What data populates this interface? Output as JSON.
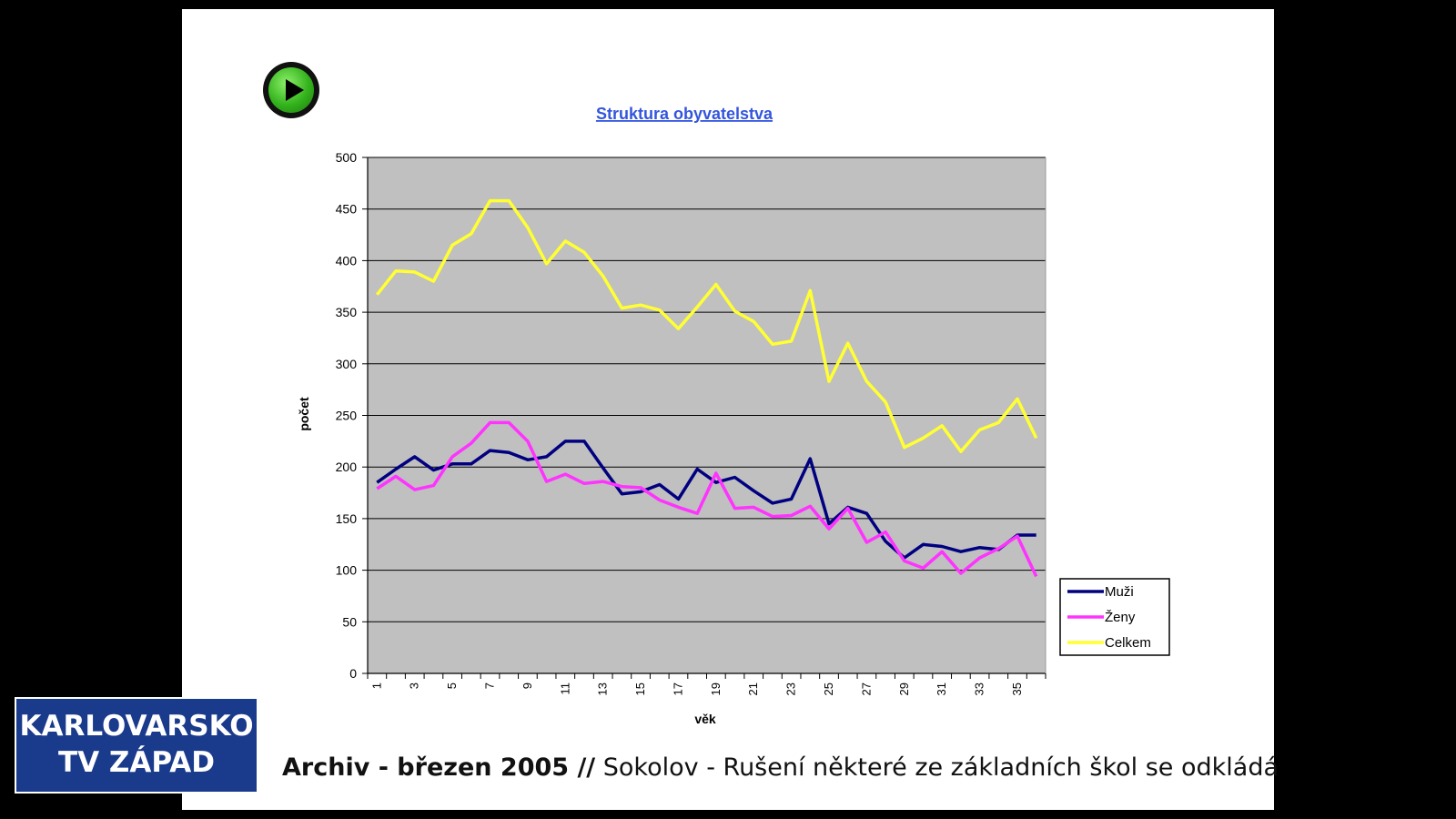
{
  "overlay": {
    "channel_line1": "KARLOVARSKO",
    "channel_line2": "TV ZÁPAD",
    "ticker_bold": "Archiv - březen 2005 //",
    "ticker_text": "Sokolov - Rušení některé ze základních škol se odkládá"
  },
  "controls": {
    "play_icon": "play-icon"
  },
  "colors": {
    "plot_bg": "#c0c0c0",
    "muzi": "#000080",
    "zeny": "#ff33ff",
    "celkem": "#ffff33",
    "title": "#3355dd"
  },
  "chart_data": {
    "type": "line",
    "title": "Struktura obyvatelstva",
    "xlabel": "věk",
    "ylabel": "počet",
    "ylim": [
      0,
      500
    ],
    "yticks": [
      0,
      50,
      100,
      150,
      200,
      250,
      300,
      350,
      400,
      450,
      500
    ],
    "x": [
      1,
      2,
      3,
      4,
      5,
      6,
      7,
      8,
      9,
      10,
      11,
      12,
      13,
      14,
      15,
      16,
      17,
      18,
      19,
      20,
      21,
      22,
      23,
      24,
      25,
      26,
      27,
      28,
      29,
      30,
      31,
      32,
      33,
      34,
      35,
      36
    ],
    "xtick_labels": [
      "1",
      "3",
      "5",
      "7",
      "9",
      "11",
      "13",
      "15",
      "17",
      "19",
      "21",
      "23",
      "25",
      "27",
      "29",
      "31",
      "33",
      "35"
    ],
    "grid": true,
    "legend_position": "right",
    "series": [
      {
        "name": "Muži",
        "values": [
          185,
          198,
          210,
          197,
          203,
          203,
          216,
          214,
          207,
          210,
          225,
          225,
          199,
          174,
          176,
          183,
          169,
          198,
          185,
          190,
          177,
          165,
          169,
          208,
          145,
          161,
          155,
          128,
          112,
          125,
          123,
          118,
          122,
          120,
          134,
          134
        ]
      },
      {
        "name": "Ženy",
        "values": [
          179,
          191,
          178,
          182,
          210,
          223,
          243,
          243,
          225,
          186,
          193,
          184,
          186,
          181,
          180,
          168,
          161,
          155,
          194,
          160,
          161,
          152,
          153,
          162,
          140,
          160,
          127,
          137,
          109,
          102,
          118,
          97,
          112,
          121,
          133,
          94
        ]
      },
      {
        "name": "Celkem",
        "values": [
          367,
          390,
          389,
          380,
          415,
          426,
          458,
          458,
          432,
          397,
          419,
          408,
          385,
          354,
          357,
          352,
          334,
          355,
          377,
          351,
          341,
          319,
          322,
          371,
          283,
          320,
          283,
          263,
          219,
          228,
          240,
          215,
          236,
          243,
          266,
          228
        ]
      }
    ]
  }
}
